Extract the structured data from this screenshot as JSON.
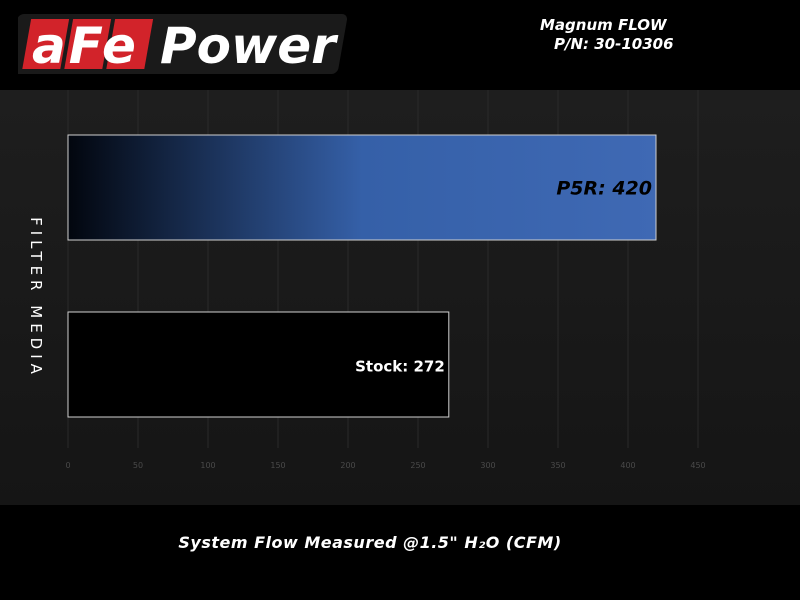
{
  "header": {
    "brand": "aFePower",
    "title_line1": "Magnum FLOW",
    "title_line2": "P/N: 30-10306"
  },
  "chart_data": {
    "type": "bar",
    "orientation": "horizontal",
    "categories": [
      "P5R",
      "Stock"
    ],
    "values": [
      420,
      272
    ],
    "data_labels": [
      "P5R: 420",
      "Stock: 272"
    ],
    "xlabel": "System Flow Measured @1.5\" H₂O (CFM)",
    "ylabel": "FILTER MEDIA",
    "xlim": [
      0,
      450
    ],
    "xticks": [
      0,
      50,
      100,
      150,
      200,
      250,
      300,
      350,
      400,
      450
    ],
    "grid": true,
    "colors": {
      "P5R": "#3d66b0",
      "Stock": "#000000"
    }
  }
}
